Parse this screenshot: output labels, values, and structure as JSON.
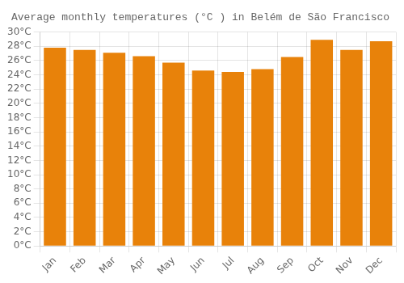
{
  "chart_data": {
    "type": "bar",
    "title": "Average monthly temperatures (°C ) in Belém de São Francisco",
    "categories": [
      "Jan",
      "Feb",
      "Mar",
      "Apr",
      "May",
      "Jun",
      "Jul",
      "Aug",
      "Sep",
      "Oct",
      "Nov",
      "Dec"
    ],
    "values": [
      27.8,
      27.5,
      27.1,
      26.6,
      25.7,
      24.6,
      24.4,
      24.8,
      26.5,
      28.9,
      27.5,
      28.7
    ],
    "color": "#E8820A",
    "ylim": [
      0,
      30
    ],
    "yticks": [
      {
        "value": 0,
        "label": "0°C"
      },
      {
        "value": 2,
        "label": "2°C"
      },
      {
        "value": 4,
        "label": "4°C"
      },
      {
        "value": 6,
        "label": "6°C"
      },
      {
        "value": 8,
        "label": "8°C"
      },
      {
        "value": 10,
        "label": "10°C"
      },
      {
        "value": 12,
        "label": "12°C"
      },
      {
        "value": 14,
        "label": "14°C"
      },
      {
        "value": 16,
        "label": "16°C"
      },
      {
        "value": 18,
        "label": "18°C"
      },
      {
        "value": 20,
        "label": "20°C"
      },
      {
        "value": 22,
        "label": "22°C"
      },
      {
        "value": 24,
        "label": "24°C"
      },
      {
        "value": 26,
        "label": "26°C"
      },
      {
        "value": 28,
        "label": "28°C"
      },
      {
        "value": 30,
        "label": "30°C"
      }
    ],
    "grid": true
  }
}
